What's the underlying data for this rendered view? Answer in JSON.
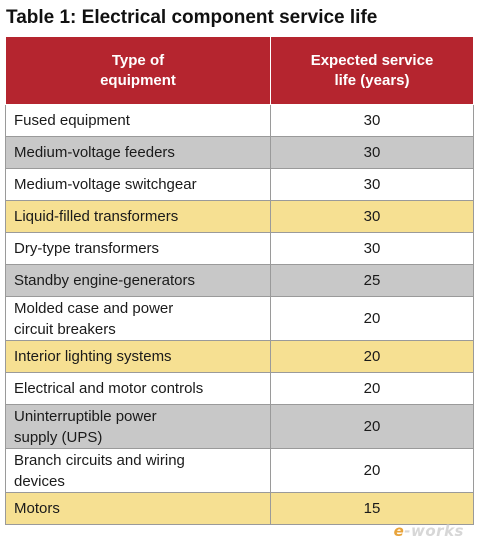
{
  "title": "Table 1: Electrical component service life",
  "table": {
    "headers": [
      [
        "Type of",
        "equipment"
      ],
      [
        "Expected service",
        "life (years)"
      ]
    ],
    "rows": [
      {
        "type": [
          "Fused equipment"
        ],
        "life": "30",
        "shade": "white"
      },
      {
        "type": [
          "Medium-voltage feeders"
        ],
        "life": "30",
        "shade": "gray"
      },
      {
        "type": [
          "Medium-voltage switchgear"
        ],
        "life": "30",
        "shade": "white"
      },
      {
        "type": [
          "Liquid-filled transformers"
        ],
        "life": "30",
        "shade": "yellow"
      },
      {
        "type": [
          "Dry-type transformers"
        ],
        "life": "30",
        "shade": "white"
      },
      {
        "type": [
          "Standby engine-generators"
        ],
        "life": "25",
        "shade": "gray"
      },
      {
        "type": [
          "Molded case and power",
          "circuit breakers"
        ],
        "life": "20",
        "shade": "white"
      },
      {
        "type": [
          "Interior lighting systems"
        ],
        "life": "20",
        "shade": "yellow"
      },
      {
        "type": [
          "Electrical and motor controls"
        ],
        "life": "20",
        "shade": "white"
      },
      {
        "type": [
          "Uninterruptible power",
          "supply (UPS)"
        ],
        "life": "20",
        "shade": "gray"
      },
      {
        "type": [
          "Branch circuits and wiring",
          "devices"
        ],
        "life": "20",
        "shade": "white"
      },
      {
        "type": [
          "Motors"
        ],
        "life": "15",
        "shade": "yellow"
      }
    ]
  },
  "watermark": {
    "prefix": "e",
    "text": "-works"
  },
  "colors": {
    "header_bg": "#b5252f",
    "row_gray": "#c8c8c8",
    "row_yellow": "#f6e092",
    "row_white": "#ffffff"
  }
}
